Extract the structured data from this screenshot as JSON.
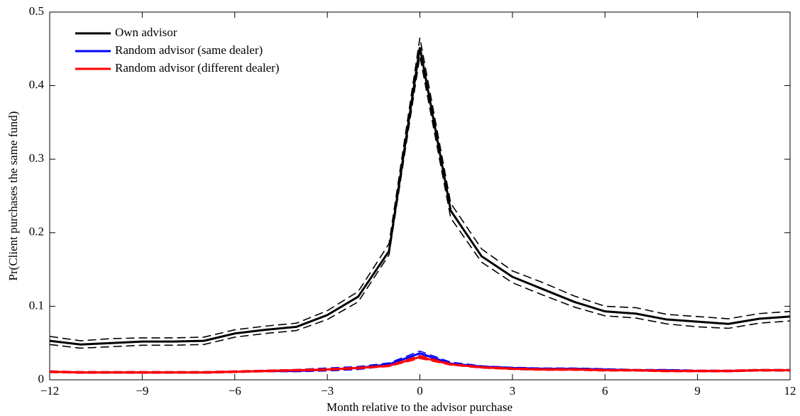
{
  "chart_data": {
    "type": "line",
    "xlabel": "Month relative to the advisor purchase",
    "ylabel": "Pr(Client purchases the same fund)",
    "x": [
      -12,
      -11,
      -10,
      -9,
      -8,
      -7,
      -6,
      -5,
      -4,
      -3,
      -2,
      -1,
      0,
      1,
      2,
      3,
      4,
      5,
      6,
      7,
      8,
      9,
      10,
      11,
      12
    ],
    "xlim": [
      -12,
      12
    ],
    "xticks": [
      {
        "value": -12,
        "label": "−12"
      },
      {
        "value": -9,
        "label": "−9"
      },
      {
        "value": -6,
        "label": "−6"
      },
      {
        "value": -3,
        "label": "−3"
      },
      0,
      3,
      6,
      9,
      12
    ],
    "ylim": [
      0,
      0.5
    ],
    "yticks": [
      0,
      0.1,
      0.2,
      0.3,
      0.4,
      0.5
    ],
    "legend": "upper left",
    "series": [
      {
        "name": "Own advisor",
        "color": "#000000",
        "values": [
          0.053,
          0.048,
          0.05,
          0.052,
          0.052,
          0.053,
          0.063,
          0.068,
          0.072,
          0.088,
          0.113,
          0.175,
          0.452,
          0.23,
          0.168,
          0.14,
          0.123,
          0.106,
          0.093,
          0.09,
          0.082,
          0.079,
          0.076,
          0.083,
          0.086
        ],
        "ci_upper": [
          0.059,
          0.053,
          0.056,
          0.057,
          0.057,
          0.058,
          0.068,
          0.073,
          0.077,
          0.094,
          0.12,
          0.185,
          0.465,
          0.24,
          0.178,
          0.148,
          0.132,
          0.114,
          0.1,
          0.098,
          0.089,
          0.086,
          0.083,
          0.09,
          0.093
        ],
        "ci_lower": [
          0.048,
          0.043,
          0.045,
          0.047,
          0.047,
          0.048,
          0.058,
          0.063,
          0.067,
          0.082,
          0.106,
          0.17,
          0.44,
          0.22,
          0.16,
          0.132,
          0.115,
          0.099,
          0.087,
          0.084,
          0.076,
          0.072,
          0.07,
          0.077,
          0.08
        ]
      },
      {
        "name": "Random advisor (same dealer)",
        "color": "#0000ff",
        "values": [
          0.011,
          0.01,
          0.01,
          0.01,
          0.01,
          0.01,
          0.011,
          0.012,
          0.012,
          0.014,
          0.016,
          0.021,
          0.036,
          0.022,
          0.018,
          0.016,
          0.015,
          0.015,
          0.014,
          0.013,
          0.013,
          0.012,
          0.012,
          0.013,
          0.013
        ],
        "ci_upper": [
          0.012,
          0.011,
          0.011,
          0.011,
          0.011,
          0.011,
          0.012,
          0.013,
          0.014,
          0.016,
          0.018,
          0.023,
          0.039,
          0.024,
          0.019,
          0.017,
          0.016,
          0.016,
          0.015,
          0.014,
          0.014,
          0.013,
          0.013,
          0.014,
          0.014
        ],
        "ci_lower": [
          0.01,
          0.009,
          0.009,
          0.009,
          0.009,
          0.009,
          0.01,
          0.011,
          0.011,
          0.012,
          0.014,
          0.019,
          0.033,
          0.02,
          0.017,
          0.015,
          0.014,
          0.014,
          0.013,
          0.012,
          0.012,
          0.011,
          0.011,
          0.012,
          0.012
        ]
      },
      {
        "name": "Random advisor (different dealer)",
        "color": "#ff0000",
        "values": [
          0.011,
          0.01,
          0.01,
          0.01,
          0.01,
          0.01,
          0.011,
          0.012,
          0.013,
          0.014,
          0.016,
          0.019,
          0.031,
          0.021,
          0.017,
          0.015,
          0.014,
          0.014,
          0.013,
          0.013,
          0.012,
          0.012,
          0.012,
          0.013,
          0.013
        ],
        "ci_upper": [
          0.012,
          0.011,
          0.011,
          0.011,
          0.011,
          0.011,
          0.012,
          0.013,
          0.014,
          0.015,
          0.017,
          0.02,
          0.033,
          0.022,
          0.018,
          0.016,
          0.015,
          0.015,
          0.014,
          0.014,
          0.013,
          0.013,
          0.013,
          0.014,
          0.014
        ],
        "ci_lower": [
          0.01,
          0.009,
          0.009,
          0.009,
          0.009,
          0.009,
          0.01,
          0.011,
          0.012,
          0.013,
          0.015,
          0.018,
          0.029,
          0.02,
          0.016,
          0.014,
          0.013,
          0.013,
          0.012,
          0.012,
          0.011,
          0.011,
          0.011,
          0.012,
          0.012
        ]
      }
    ]
  }
}
